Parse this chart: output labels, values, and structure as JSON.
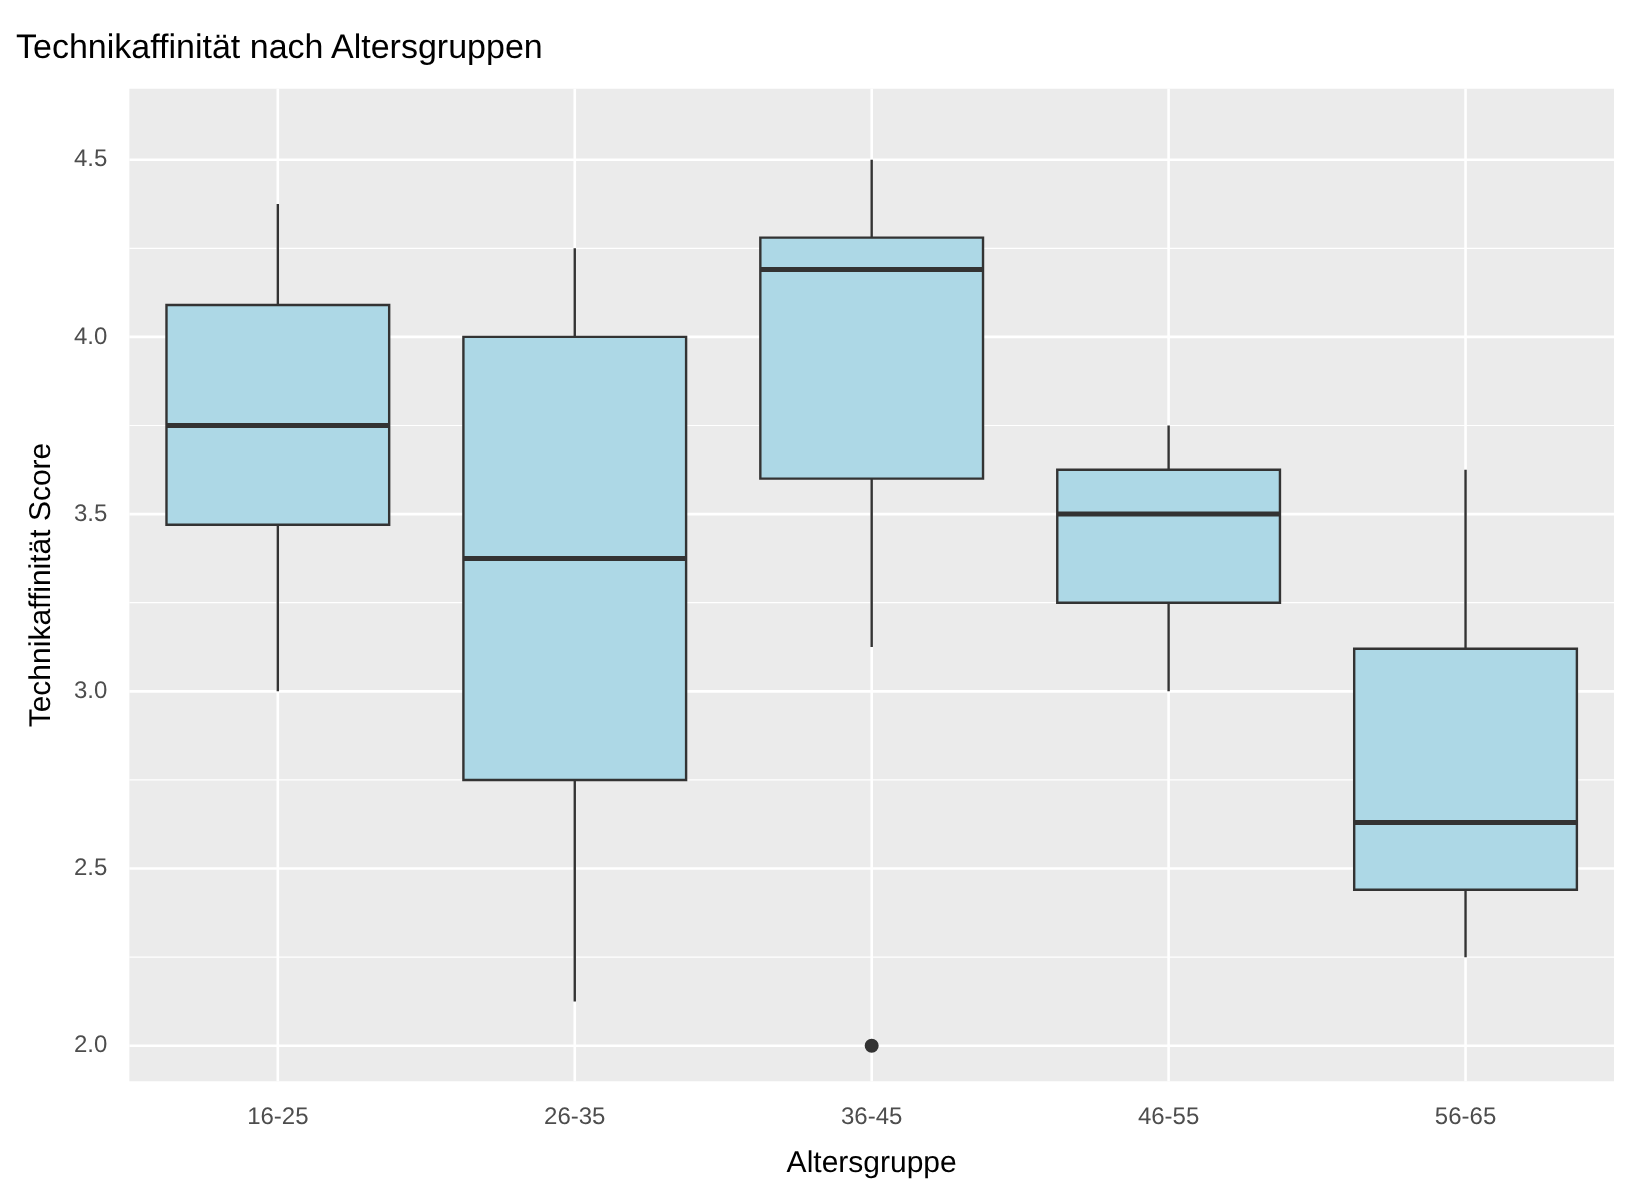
{
  "chart_data": {
    "type": "box",
    "title": "Technikaffinität nach Altersgruppen",
    "xlabel": "Altersgruppe",
    "ylabel": "Technikaffinität Score",
    "categories": [
      "16-25",
      "26-35",
      "36-45",
      "46-55",
      "56-65"
    ],
    "color": "#add8e6",
    "boxes": [
      {
        "low": 3.0,
        "q1": 3.47,
        "median": 3.75,
        "q3": 4.09,
        "high": 4.375
      },
      {
        "low": 2.125,
        "q1": 2.75,
        "median": 3.375,
        "q3": 4.0,
        "high": 4.25
      },
      {
        "low": 3.125,
        "q1": 3.6,
        "median": 4.19,
        "q3": 4.28,
        "high": 4.5,
        "outliers": [
          2.0
        ]
      },
      {
        "low": 3.0,
        "q1": 3.25,
        "median": 3.5,
        "q3": 3.625,
        "high": 3.75
      },
      {
        "low": 2.25,
        "q1": 2.44,
        "median": 2.63,
        "q3": 3.12,
        "high": 3.625
      }
    ],
    "ylim": [
      1.9,
      4.7
    ],
    "yticks": [
      {
        "value": 2.0,
        "label": "2.0"
      },
      {
        "value": 2.5,
        "label": "2.5"
      },
      {
        "value": 3.0,
        "label": "3.0"
      },
      {
        "value": 3.5,
        "label": "3.5"
      },
      {
        "value": 4.0,
        "label": "4.0"
      },
      {
        "value": 4.5,
        "label": "4.5"
      }
    ],
    "grid": true,
    "legend": false
  }
}
